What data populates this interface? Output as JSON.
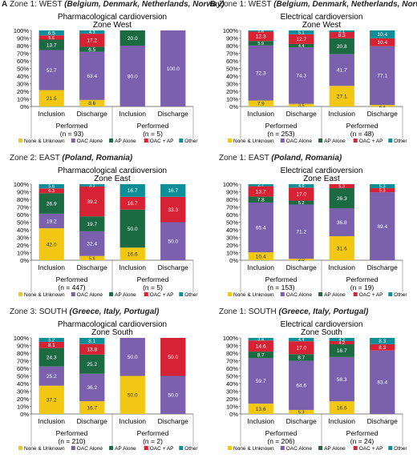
{
  "panels": [
    {
      "letter": "A",
      "zone_prefix": "Zone 1: WEST",
      "zone_country": "(Belgium, Denmark, Netherlands, Norway)"
    },
    {
      "letter": "B",
      "zone_prefix": "Zone 1: WEST",
      "zone_country": "(Belgium, Denmark, Netherlands, Norway)"
    }
  ],
  "zone_titles": [
    {
      "prefix": "Zone 2: EAST",
      "country": "(Poland, Romania)"
    },
    {
      "prefix": "Zone 1: EAST",
      "country": "(Poland, Romania)"
    },
    {
      "prefix": "Zone 3: SOUTH",
      "country": "(Greece, Italy, Portugal)"
    },
    {
      "prefix": "Zone 1: SOUTH",
      "country": "(Greece, Italy, Portugal)"
    }
  ],
  "colors": {
    "None & Unknown": "#f2c814",
    "OAC Alone": "#7a60ad",
    "AP Alone": "#1b6a42",
    "OAC + AP": "#d62234",
    "Other": "#0e8f98"
  },
  "chart_data": [
    {
      "type": "bar",
      "stacked": true,
      "title": "Pharmacological cardioversion",
      "subtitle": "Zone West",
      "categories": [
        "Inclusion",
        "Discharge",
        "Inclusion",
        "Discharge"
      ],
      "groups": [
        {
          "label": "Performed",
          "n": "(n = 93)"
        },
        {
          "label": "Performed",
          "n": "(n = 5)"
        }
      ],
      "ylim": [
        0,
        100
      ],
      "yticks": [
        "0%",
        "10%",
        "20%",
        "30%",
        "40%",
        "50%",
        "60%",
        "70%",
        "80%",
        "90%",
        "100%"
      ],
      "legend_position": "bottom",
      "series": [
        {
          "name": "None & Unknown",
          "values": [
            21.5,
            8.6,
            0,
            0
          ],
          "labels": [
            "21.5",
            "8.6",
            "",
            ""
          ]
        },
        {
          "name": "OAC Alone",
          "values": [
            52.7,
            63.4,
            80.0,
            100.0
          ],
          "labels": [
            "52.7",
            "63.4",
            "80.0",
            "100.0"
          ]
        },
        {
          "name": "AP Alone",
          "values": [
            13.7,
            6.5,
            20.0,
            0
          ],
          "labels": [
            "13.7",
            "6.5",
            "20.0",
            ""
          ]
        },
        {
          "name": "OAC + AP",
          "values": [
            5.6,
            17.2,
            0,
            0
          ],
          "labels": [
            "5.6",
            "17.2",
            "",
            ""
          ]
        },
        {
          "name": "Other",
          "values": [
            6.5,
            4.3,
            0,
            0
          ],
          "labels": [
            "6.5",
            "4.3",
            "",
            ""
          ]
        }
      ]
    },
    {
      "type": "bar",
      "stacked": true,
      "title": "Electrical cardioversion",
      "subtitle": "Zone West",
      "categories": [
        "Inclusion",
        "Discharge",
        "Inclusion",
        "Discharge"
      ],
      "groups": [
        {
          "label": "Performed",
          "n": "(n = 253)"
        },
        {
          "label": "Performed",
          "n": "(n = 48)"
        }
      ],
      "ylim": [
        0,
        100
      ],
      "yticks": [
        "0%",
        "10%",
        "20%",
        "30%",
        "40%",
        "50%",
        "60%",
        "70%",
        "80%",
        "90%",
        "100%"
      ],
      "legend_position": "bottom",
      "series": [
        {
          "name": "None & Unknown",
          "values": [
            7.9,
            3.5,
            27.1,
            2.1
          ],
          "labels": [
            "7.9",
            "3.5",
            "27.1",
            "2.1"
          ]
        },
        {
          "name": "OAC Alone",
          "values": [
            72.3,
            74.3,
            41.7,
            77.1
          ],
          "labels": [
            "72.3",
            "74.3",
            "41.7",
            "77.1"
          ]
        },
        {
          "name": "AP Alone",
          "values": [
            5.9,
            4.4,
            20.8,
            0
          ],
          "labels": [
            "5.9",
            "4.4",
            "20.8",
            ""
          ]
        },
        {
          "name": "OAC + AP",
          "values": [
            12.3,
            12.7,
            8.3,
            10.4
          ],
          "labels": [
            "12.3",
            "12.7",
            "8.3",
            "10.4"
          ]
        },
        {
          "name": "Other",
          "values": [
            1.6,
            5.1,
            2.1,
            10.4
          ],
          "labels": [
            "1.6",
            "5.1",
            "2.1",
            "10.4"
          ]
        }
      ]
    },
    {
      "type": "bar",
      "stacked": true,
      "title": "Pharmacological cardioversion",
      "subtitle": "Zone East",
      "categories": [
        "Inclusion",
        "Discharge",
        "Inclusion",
        "Discharge"
      ],
      "groups": [
        {
          "label": "Performed",
          "n": "(n = 447)"
        },
        {
          "label": "Performed",
          "n": "(n = 5)"
        }
      ],
      "ylim": [
        0,
        100
      ],
      "yticks": [
        "0%",
        "10%",
        "20%",
        "30%",
        "40%",
        "50%",
        "60%",
        "70%",
        "80%",
        "90%",
        "100%"
      ],
      "legend_position": "bottom",
      "series": [
        {
          "name": "None & Unknown",
          "values": [
            42.0,
            5.6,
            16.6,
            0
          ],
          "labels": [
            "42.0",
            "5.6",
            "16.6",
            ""
          ]
        },
        {
          "name": "OAC Alone",
          "values": [
            19.2,
            32.4,
            0,
            50.0
          ],
          "labels": [
            "19.2",
            "32.4",
            "",
            "50.0"
          ]
        },
        {
          "name": "AP Alone",
          "values": [
            26.9,
            19.7,
            50.0,
            0
          ],
          "labels": [
            "26.9",
            "19.7",
            "50.0",
            ""
          ]
        },
        {
          "name": "OAC + AP",
          "values": [
            6.3,
            39.2,
            16.7,
            33.3
          ],
          "labels": [
            "6.3",
            "39.2",
            "16.7",
            "33.3"
          ]
        },
        {
          "name": "Other",
          "values": [
            5.6,
            3.1,
            16.7,
            16.7
          ],
          "labels": [
            "5.6",
            "3.1",
            "16.7",
            "16.7"
          ]
        }
      ]
    },
    {
      "type": "bar",
      "stacked": true,
      "title": "Electrical cardioversion",
      "subtitle": "Zone East",
      "categories": [
        "Inclusion",
        "Discharge",
        "Inclusion",
        "Discharge"
      ],
      "groups": [
        {
          "label": "Performed",
          "n": "(n = 153)"
        },
        {
          "label": "Performed",
          "n": "(n = 19)"
        }
      ],
      "ylim": [
        0,
        100
      ],
      "yticks": [
        "0%",
        "10%",
        "20%",
        "30%",
        "40%",
        "50%",
        "60%",
        "70%",
        "80%",
        "90%",
        "100%"
      ],
      "legend_position": "bottom",
      "series": [
        {
          "name": "None & Unknown",
          "values": [
            10.4,
            2.0,
            31.6,
            0
          ],
          "labels": [
            "10.4",
            "2.0",
            "31.6",
            ""
          ]
        },
        {
          "name": "OAC Alone",
          "values": [
            65.4,
            71.2,
            36.8,
            89.4
          ],
          "labels": [
            "65.4",
            "71.2",
            "36.8",
            "89.4"
          ]
        },
        {
          "name": "AP Alone",
          "values": [
            7.8,
            5.2,
            26.3,
            0
          ],
          "labels": [
            "7.8",
            "5.2",
            "26.3",
            ""
          ]
        },
        {
          "name": "OAC + AP",
          "values": [
            13.7,
            17.0,
            5.3,
            5.3
          ],
          "labels": [
            "13.7",
            "17.0",
            "5.3",
            "5.3"
          ]
        },
        {
          "name": "Other",
          "values": [
            2.7,
            4.6,
            0,
            5.3
          ],
          "labels": [
            "2.7",
            "4.6",
            "",
            "5.3"
          ]
        }
      ]
    },
    {
      "type": "bar",
      "stacked": true,
      "title": "Pharmacological cardioversion",
      "subtitle": "Zone South",
      "categories": [
        "Inclusion",
        "Discharge",
        "Inclusion",
        "Discharge"
      ],
      "groups": [
        {
          "label": "Performed",
          "n": "(n = 210)"
        },
        {
          "label": "Performed",
          "n": "(n = 2)"
        }
      ],
      "ylim": [
        0,
        100
      ],
      "yticks": [
        "0%",
        "10%",
        "20%",
        "30%",
        "40%",
        "50%",
        "60%",
        "70%",
        "80%",
        "90%",
        "100%"
      ],
      "legend_position": "bottom",
      "series": [
        {
          "name": "None & Unknown",
          "values": [
            37.2,
            16.7,
            50.0,
            0
          ],
          "labels": [
            "37.2",
            "16.7",
            "50.0",
            ""
          ]
        },
        {
          "name": "OAC Alone",
          "values": [
            25.2,
            36.2,
            50.0,
            50.0
          ],
          "labels": [
            "25.2",
            "36.2",
            "50.0",
            "50.0"
          ]
        },
        {
          "name": "AP Alone",
          "values": [
            24.3,
            25.2,
            0,
            0
          ],
          "labels": [
            "24.3",
            "25.2",
            "",
            ""
          ]
        },
        {
          "name": "OAC + AP",
          "values": [
            8.1,
            13.8,
            0,
            50.0
          ],
          "labels": [
            "8.1",
            "13.8",
            "",
            "50.0"
          ]
        },
        {
          "name": "Other",
          "values": [
            5.2,
            8.1,
            0,
            0
          ],
          "labels": [
            "5.2",
            "8.1",
            "",
            ""
          ]
        }
      ]
    },
    {
      "type": "bar",
      "stacked": true,
      "title": "Electrical cardioversion",
      "subtitle": "Zone South",
      "categories": [
        "Inclusion",
        "Discharge",
        "Inclusion",
        "Discharge"
      ],
      "groups": [
        {
          "label": "Performed",
          "n": "(n = 206)"
        },
        {
          "label": "Performed",
          "n": "(n = 24)"
        }
      ],
      "ylim": [
        0,
        100
      ],
      "yticks": [
        "0%",
        "10%",
        "20%",
        "30%",
        "40%",
        "50%",
        "60%",
        "70%",
        "80%",
        "90%",
        "100%"
      ],
      "legend_position": "bottom",
      "series": [
        {
          "name": "None & Unknown",
          "values": [
            13.6,
            5.3,
            16.6,
            0
          ],
          "labels": [
            "13.6",
            "5.3",
            "16.6",
            ""
          ]
        },
        {
          "name": "OAC Alone",
          "values": [
            59.7,
            64.6,
            58.3,
            83.4
          ],
          "labels": [
            "59.7",
            "64.6",
            "58.3",
            "83.4"
          ]
        },
        {
          "name": "AP Alone",
          "values": [
            8.7,
            8.7,
            16.7,
            0
          ],
          "labels": [
            "8.7",
            "8.7",
            "16.7",
            ""
          ]
        },
        {
          "name": "OAC + AP",
          "values": [
            14.6,
            17.0,
            4.2,
            8.3
          ],
          "labels": [
            "14.6",
            "17.0",
            "4.2",
            "8.3"
          ]
        },
        {
          "name": "Other",
          "values": [
            3.4,
            4.4,
            4.2,
            8.3
          ],
          "labels": [
            "3.4",
            "4.4",
            "4.2",
            "8.3"
          ]
        }
      ]
    }
  ]
}
